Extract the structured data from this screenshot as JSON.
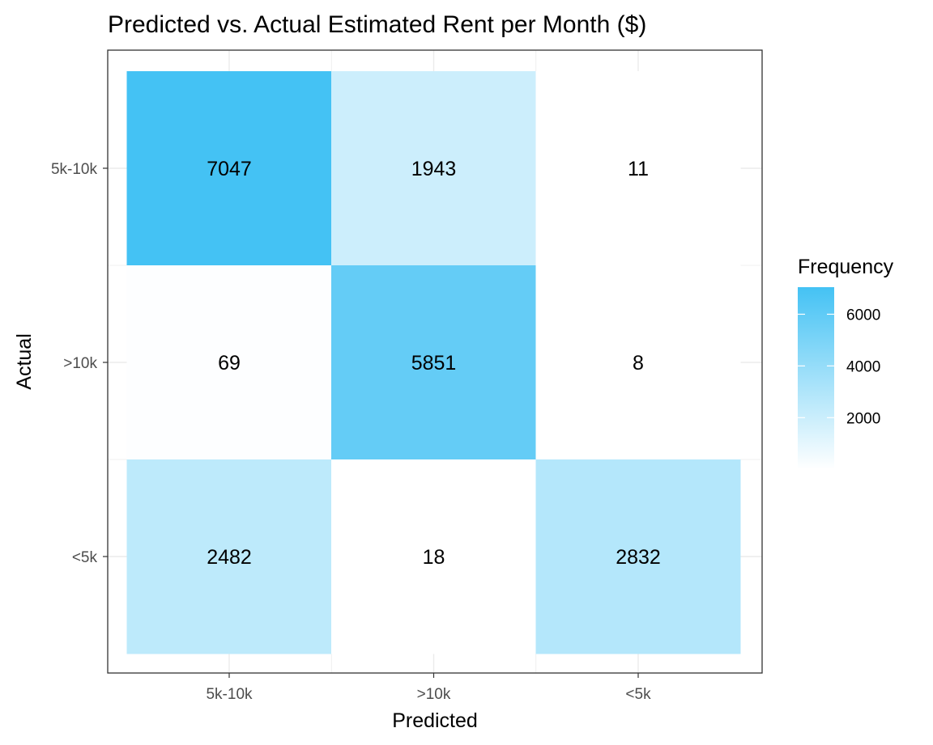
{
  "chart_data": {
    "type": "heatmap",
    "title": "Predicted vs. Actual Estimated Rent per Month ($)",
    "xlabel": "Predicted",
    "ylabel": "Actual",
    "x_categories": [
      "5k-10k",
      ">10k",
      "<5k"
    ],
    "y_categories": [
      "5k-10k",
      ">10k",
      "<5k"
    ],
    "matrix": [
      [
        7047,
        1943,
        11
      ],
      [
        69,
        5851,
        8
      ],
      [
        2482,
        18,
        2832
      ]
    ],
    "legend": {
      "title": "Frequency",
      "ticks": [
        2000,
        4000,
        6000
      ],
      "range": [
        8,
        7047
      ],
      "low_color": "#ffffff",
      "high_color": "#44c2f4",
      "placement": "right"
    },
    "grid": true
  }
}
